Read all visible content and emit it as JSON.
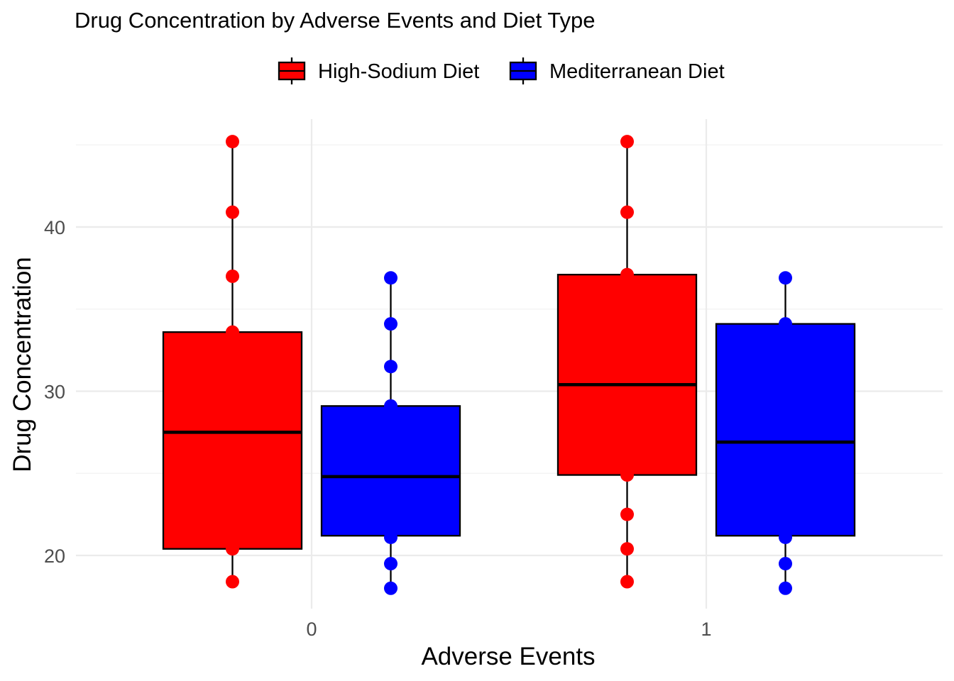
{
  "chart_data": {
    "type": "box",
    "title": "Drug Concentration by Adverse Events and Diet Type",
    "xlabel": "Adverse Events",
    "ylabel": "Drug Concentration",
    "categories": [
      "0",
      "1"
    ],
    "ylim": [
      17.3,
      46.3
    ],
    "y_ticks": [
      20,
      30,
      40
    ],
    "grid": true,
    "legend_position": "top",
    "series": [
      {
        "name": "High-Sodium Diet",
        "color": "#ff0000",
        "boxes": [
          {
            "category": "0",
            "min": 18.4,
            "q1": 20.4,
            "median": 27.5,
            "q3": 33.6,
            "max": 45.2,
            "points": [
              45.2,
              40.9,
              37.0,
              33.6,
              20.4,
              18.4
            ]
          },
          {
            "category": "1",
            "min": 18.4,
            "q1": 24.9,
            "median": 30.4,
            "q3": 37.1,
            "max": 45.2,
            "points": [
              45.2,
              40.9,
              37.1,
              24.9,
              22.5,
              20.4,
              18.4
            ]
          }
        ]
      },
      {
        "name": "Mediterranean Diet",
        "color": "#0000ff",
        "boxes": [
          {
            "category": "0",
            "min": 18.0,
            "q1": 21.2,
            "median": 24.8,
            "q3": 29.1,
            "max": 36.9,
            "points": [
              36.9,
              34.1,
              31.5,
              29.1,
              21.1,
              19.5,
              18.0
            ]
          },
          {
            "category": "1",
            "min": 18.0,
            "q1": 21.2,
            "median": 26.9,
            "q3": 34.1,
            "max": 36.9,
            "points": [
              36.9,
              34.1,
              21.1,
              19.5,
              18.0
            ]
          }
        ]
      }
    ]
  }
}
